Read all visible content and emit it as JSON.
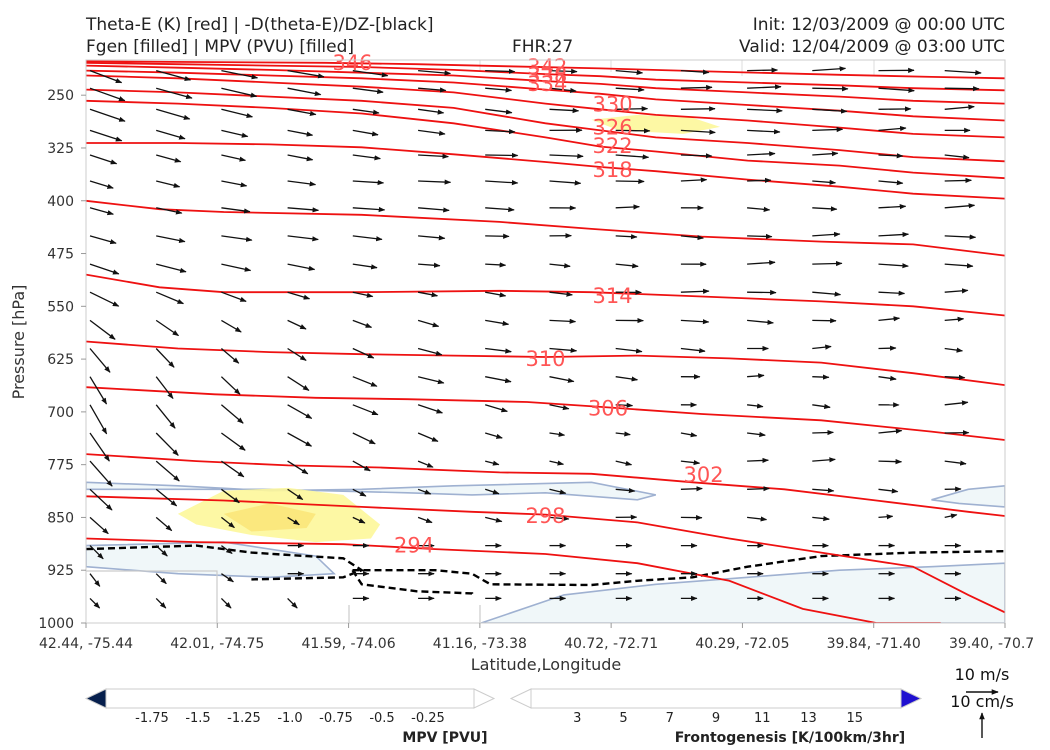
{
  "header": {
    "title_left_1": "Theta-E (K) [red] | -D(theta-E)/DZ-[black]",
    "title_left_2": "Fgen [filled] | MPV (PVU) [filled]",
    "fhr": "FHR:27",
    "init": "Init: 12/03/2009 @ 00:00 UTC",
    "valid": "Valid: 12/04/2009 @ 03:00 UTC"
  },
  "chart_data": {
    "type": "cross-section",
    "xlabel": "Latitude,Longitude",
    "ylabel": "Pressure [hPa]",
    "x_ticks": [
      "42.44, -75.44",
      "42.01, -74.75",
      "41.59, -74.06",
      "41.16, -73.38",
      "40.72, -72.71",
      "40.29, -72.05",
      "39.84, -71.40",
      "39.40, -70.7"
    ],
    "y_ticks": [
      250,
      325,
      400,
      475,
      550,
      625,
      700,
      775,
      850,
      925,
      1000
    ],
    "ylim": [
      1000,
      200
    ],
    "theta_e_contours": [
      {
        "label": "294",
        "x": [
          0.0,
          0.12,
          0.28,
          0.38,
          0.5,
          0.6,
          0.7,
          0.78,
          0.86,
          0.93
        ],
        "p": [
          880,
          885,
          888,
          895,
          902,
          915,
          940,
          980,
          1000,
          1000
        ]
      },
      {
        "label": "298",
        "x": [
          0.0,
          0.15,
          0.3,
          0.42,
          0.5,
          0.6,
          0.7,
          0.8,
          0.9,
          0.96,
          1.0
        ],
        "p": [
          820,
          826,
          835,
          842,
          846,
          857,
          880,
          900,
          920,
          960,
          985
        ]
      },
      {
        "label": "302",
        "x": [
          0.0,
          0.12,
          0.22,
          0.32,
          0.45,
          0.55,
          0.66,
          0.76,
          0.86,
          0.96,
          1.0
        ],
        "p": [
          760,
          770,
          776,
          779,
          786,
          788,
          800,
          810,
          826,
          842,
          848
        ]
      },
      {
        "label": "306",
        "x": [
          0.0,
          0.14,
          0.25,
          0.35,
          0.48,
          0.56,
          0.67,
          0.8,
          0.92,
          1.0
        ],
        "p": [
          665,
          675,
          680,
          682,
          686,
          693,
          703,
          712,
          728,
          740
        ]
      },
      {
        "label": "310",
        "x": [
          0.0,
          0.1,
          0.2,
          0.3,
          0.4,
          0.5,
          0.6,
          0.7,
          0.8,
          0.9,
          1.0
        ],
        "p": [
          600,
          610,
          615,
          618,
          620,
          622,
          620,
          624,
          630,
          645,
          662
        ]
      },
      {
        "label": "314",
        "x": [
          0.0,
          0.08,
          0.15,
          0.3,
          0.45,
          0.55,
          0.67,
          0.8,
          0.9,
          1.0
        ],
        "p": [
          505,
          523,
          530,
          530,
          528,
          530,
          536,
          543,
          550,
          563
        ]
      },
      {
        "label": "",
        "x": [
          0.0,
          0.08,
          0.15,
          0.3,
          0.45,
          0.55,
          0.67,
          0.8,
          0.9,
          1.0
        ],
        "p": [
          400,
          412,
          416,
          420,
          430,
          440,
          451,
          458,
          462,
          478
        ]
      },
      {
        "label": "318",
        "x": [
          0.0,
          0.1,
          0.2,
          0.3,
          0.4,
          0.5,
          0.56,
          0.62,
          0.72,
          0.82,
          0.9,
          1.0
        ],
        "p": [
          318,
          318,
          320,
          324,
          334,
          345,
          352,
          358,
          370,
          380,
          390,
          397
        ]
      },
      {
        "label": "322",
        "x": [
          0.0,
          0.1,
          0.2,
          0.3,
          0.4,
          0.5,
          0.56,
          0.62,
          0.72,
          0.82,
          0.9,
          1.0
        ],
        "p": [
          258,
          262,
          268,
          276,
          290,
          310,
          323,
          330,
          343,
          350,
          360,
          368
        ]
      },
      {
        "label": "326",
        "x": [
          0.0,
          0.1,
          0.2,
          0.3,
          0.4,
          0.5,
          0.56,
          0.62,
          0.72,
          0.82,
          0.9,
          1.0
        ],
        "p": [
          242,
          246,
          252,
          258,
          268,
          290,
          300,
          310,
          318,
          328,
          338,
          344
        ]
      },
      {
        "label": "330",
        "x": [
          0.0,
          0.1,
          0.2,
          0.3,
          0.4,
          0.5,
          0.56,
          0.62,
          0.72,
          0.82,
          0.9,
          1.0
        ],
        "p": [
          222,
          226,
          232,
          238,
          246,
          262,
          270,
          278,
          286,
          296,
          305,
          310
        ]
      },
      {
        "label": "334",
        "x": [
          0.0,
          0.1,
          0.2,
          0.3,
          0.4,
          0.5,
          0.56,
          0.62,
          0.72,
          0.82,
          0.9,
          1.0
        ],
        "p": [
          215,
          218,
          222,
          226,
          232,
          242,
          248,
          256,
          264,
          272,
          280,
          286
        ]
      },
      {
        "label": "338",
        "x": [
          0.0,
          0.1,
          0.2,
          0.3,
          0.4,
          0.5,
          0.56,
          0.62,
          0.72,
          0.82,
          0.9,
          1.0
        ],
        "p": [
          208,
          211,
          214,
          218,
          222,
          230,
          234,
          240,
          246,
          252,
          258,
          262
        ]
      },
      {
        "label": "342",
        "x": [
          0.0,
          0.1,
          0.2,
          0.3,
          0.4,
          0.5,
          0.56,
          0.62,
          0.72,
          0.82,
          0.9,
          1.0
        ],
        "p": [
          204,
          206,
          208,
          210,
          214,
          220,
          223,
          228,
          232,
          236,
          240,
          243
        ]
      },
      {
        "label": "346",
        "x": [
          0.0,
          0.14,
          0.26,
          0.36,
          0.46,
          0.56,
          0.7,
          0.82,
          0.92,
          1.0
        ],
        "p": [
          202,
          203,
          204,
          206,
          209,
          212,
          217,
          221,
          224,
          226
        ]
      }
    ],
    "theta_e_labels": [
      {
        "text": "346",
        "x": 0.29,
        "p": 204
      },
      {
        "text": "342",
        "x": 0.502,
        "p": 210
      },
      {
        "text": "338",
        "x": 0.502,
        "p": 222
      },
      {
        "text": "334",
        "x": 0.502,
        "p": 234
      },
      {
        "text": "330",
        "x": 0.573,
        "p": 263
      },
      {
        "text": "326",
        "x": 0.573,
        "p": 296
      },
      {
        "text": "322",
        "x": 0.573,
        "p": 322
      },
      {
        "text": "318",
        "x": 0.573,
        "p": 356
      },
      {
        "text": "314",
        "x": 0.573,
        "p": 535
      },
      {
        "text": "310",
        "x": 0.5,
        "p": 625
      },
      {
        "text": "306",
        "x": 0.568,
        "p": 695
      },
      {
        "text": "302",
        "x": 0.672,
        "p": 790
      },
      {
        "text": "298",
        "x": 0.5,
        "p": 848
      },
      {
        "text": "294",
        "x": 0.357,
        "p": 890
      }
    ],
    "fgen_fill": [
      {
        "value": 3,
        "x": [
          0.1,
          0.15,
          0.22,
          0.28,
          0.32,
          0.31,
          0.25,
          0.18,
          0.12,
          0.1
        ],
        "p": [
          845,
          812,
          808,
          818,
          860,
          880,
          885,
          875,
          860,
          845
        ]
      },
      {
        "value": 5,
        "x": [
          0.15,
          0.2,
          0.25,
          0.24,
          0.18,
          0.15
        ],
        "p": [
          845,
          830,
          845,
          865,
          870,
          845
        ]
      },
      {
        "value": 3,
        "x": [
          0.55,
          0.6,
          0.66,
          0.69,
          0.65,
          0.58,
          0.55
        ],
        "p": [
          285,
          278,
          282,
          295,
          305,
          300,
          285
        ]
      }
    ],
    "mpv_fill": [
      {
        "value": -0.25,
        "x": [
          0.0,
          0.2,
          0.35,
          0.42,
          0.5,
          0.6,
          0.62,
          0.55,
          0.4,
          0.3,
          0.2,
          0.1,
          0.0
        ],
        "p": [
          810,
          810,
          815,
          818,
          815,
          825,
          818,
          800,
          805,
          810,
          812,
          805,
          800
        ]
      },
      {
        "value": -0.25,
        "x": [
          0.0,
          0.15,
          0.25,
          0.27,
          0.2,
          0.1,
          0.0
        ],
        "p": [
          890,
          885,
          905,
          930,
          935,
          930,
          920
        ]
      },
      {
        "value": -0.25,
        "x": [
          0.43,
          0.52,
          0.62,
          0.72,
          0.82,
          0.92,
          1.0,
          1.0,
          0.75,
          0.5,
          0.43
        ],
        "p": [
          1000,
          960,
          945,
          935,
          925,
          920,
          915,
          1000,
          1000,
          1000,
          1000
        ]
      },
      {
        "value": -0.25,
        "x": [
          0.92,
          0.96,
          1.0,
          1.0,
          0.95,
          0.92
        ],
        "p": [
          825,
          810,
          805,
          835,
          830,
          825
        ]
      }
    ],
    "stability_neg_contours": [
      {
        "x": [
          0.0,
          0.07,
          0.12,
          0.18,
          0.24,
          0.28,
          0.3,
          0.28,
          0.18
        ],
        "p": [
          895,
          892,
          890,
          900,
          905,
          908,
          925,
          935,
          938
        ]
      },
      {
        "x": [
          0.29,
          0.35,
          0.38,
          0.42,
          0.44,
          0.55,
          0.6,
          0.66,
          0.72,
          0.8,
          0.9,
          1.0
        ],
        "p": [
          925,
          925,
          925,
          930,
          945,
          946,
          940,
          935,
          920,
          905,
          900,
          898
        ]
      },
      {
        "x": [
          0.29,
          0.3,
          0.36,
          0.42,
          0.42
        ],
        "p": [
          925,
          945,
          955,
          958,
          960
        ]
      }
    ],
    "wind_vectors": {
      "rows_p": [
        215,
        240,
        270,
        300,
        335,
        372,
        410,
        450,
        490,
        530,
        570,
        610,
        650,
        690,
        730,
        770,
        810,
        850,
        890,
        930,
        965
      ],
      "cols_x": [
        0.0,
        0.072,
        0.143,
        0.215,
        0.286,
        0.357,
        0.43,
        0.5,
        0.572,
        0.643,
        0.715,
        0.786,
        0.858,
        0.93
      ],
      "scale_px_per_ms": 3.2
    },
    "mpv_colorbar": {
      "title": "MPV [PVU]",
      "ticks": [
        "-1.75",
        "-1.5",
        "-1.25",
        "-1.0",
        "-0.75",
        "-0.5",
        "-0.25"
      ],
      "colors": [
        "#08306b",
        "#08428a",
        "#0b5a95",
        "#1a7ba6",
        "#4a9cc0",
        "#84bdd6",
        "#bfdde9"
      ]
    },
    "fgen_colorbar": {
      "title": "Frontogenesis [K/100km/3hr]",
      "ticks": [
        "3",
        "5",
        "7",
        "9",
        "11",
        "13",
        "15"
      ],
      "colors": [
        "#f7f419",
        "#fbbf3f",
        "#fc8c6c",
        "#f95fa2",
        "#c42ed7",
        "#7d1bf3",
        "#2a12f7"
      ]
    },
    "reference_vectors": {
      "horizontal": "10 m/s",
      "vertical": "10 cm/s"
    }
  }
}
